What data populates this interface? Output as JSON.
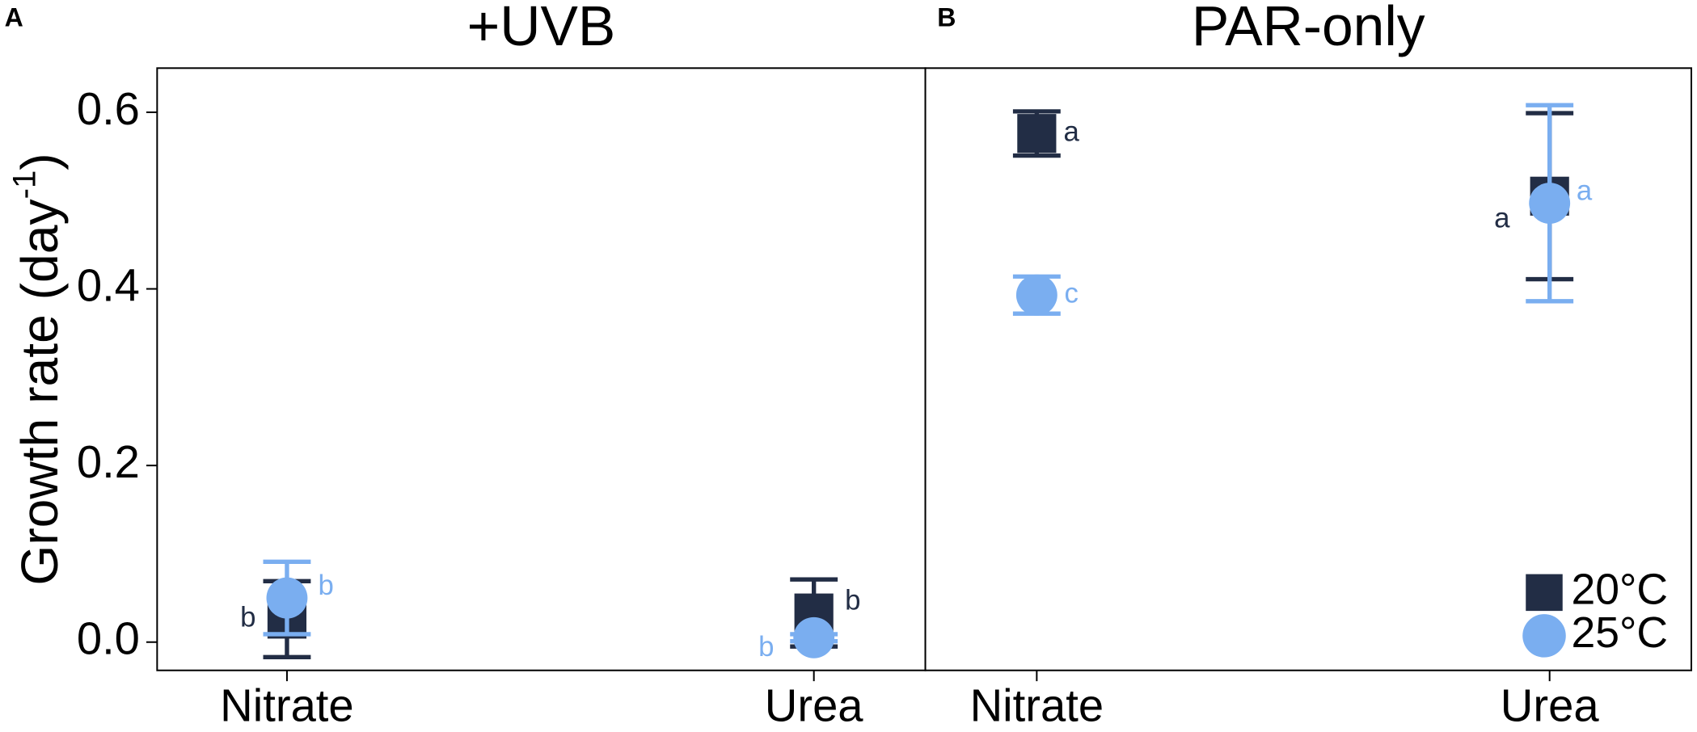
{
  "chart_data": [
    {
      "type": "dot",
      "panel": "A",
      "title": "+UVB",
      "ylabel": {
        "text": "Growth rate (day",
        "superscript": "-1",
        "close": ")"
      },
      "categories": [
        "Nitrate",
        "Urea"
      ],
      "ylim": [
        -0.032,
        0.65
      ],
      "yticks": [
        {
          "value": 0,
          "label": "0.0"
        },
        0.2,
        0.4,
        0.6
      ],
      "series": [
        {
          "marker": "square",
          "color": "#222d45",
          "values": [
            0.026,
            0.033
          ],
          "errors": [
            0.043,
            0.038
          ],
          "letters": [
            "b",
            "b"
          ]
        },
        {
          "marker": "circle",
          "color": "#7aaef0",
          "values": [
            0.05,
            0.005
          ],
          "errors": [
            0.041,
            0.004
          ],
          "letters": [
            "b",
            "b"
          ]
        }
      ]
    },
    {
      "type": "dot",
      "panel": "B",
      "title": "PAR-only",
      "categories": [
        "Nitrate",
        "Urea"
      ],
      "ylim": [
        -0.032,
        0.65
      ],
      "legend": "lower right",
      "series": [
        {
          "name": "20°C",
          "marker": "square",
          "color": "#222d45",
          "values": [
            0.576,
            0.505
          ],
          "errors": [
            0.025,
            0.094
          ],
          "letters": [
            "a",
            "a"
          ]
        },
        {
          "name": "25°C",
          "marker": "circle",
          "color": "#7aaef0",
          "values": [
            0.393,
            0.497
          ],
          "errors": [
            0.021,
            0.111
          ],
          "letters": [
            "c",
            "a"
          ]
        }
      ]
    }
  ]
}
